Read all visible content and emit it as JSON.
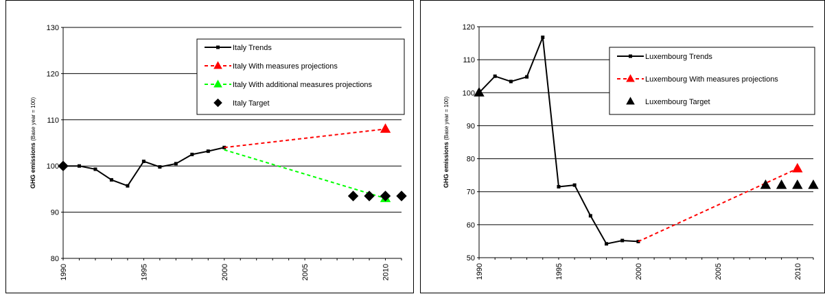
{
  "chart_data": [
    {
      "type": "line",
      "ylabel": "GHG emissions",
      "ylabel_note": "(Base year = 100)",
      "ylim": [
        80,
        130
      ],
      "yticks": [
        80,
        90,
        100,
        110,
        120,
        130
      ],
      "xlim": [
        1990,
        2011
      ],
      "xticks": [
        1990,
        1995,
        2000,
        2005,
        2010
      ],
      "grid": true,
      "legend_position": "top-right",
      "series": [
        {
          "name": "Italy  Trends",
          "color": "#000000",
          "style": "solid",
          "marker": "square",
          "points": [
            [
              1990,
              100
            ],
            [
              1991,
              100
            ],
            [
              1992,
              99.3
            ],
            [
              1993,
              97
            ],
            [
              1994,
              95.7
            ],
            [
              1995,
              101
            ],
            [
              1996,
              99.8
            ],
            [
              1997,
              100.5
            ],
            [
              1998,
              102.5
            ],
            [
              1999,
              103.2
            ],
            [
              2000,
              104
            ]
          ]
        },
        {
          "name": "Italy  With measures projections",
          "color": "#ff0000",
          "style": "dashed",
          "marker": "triangle",
          "points": [
            [
              2000,
              104
            ],
            [
              2010,
              108
            ]
          ]
        },
        {
          "name": "Italy  With additional measures projections",
          "color": "#00ff00",
          "style": "dashed",
          "marker": "triangle",
          "points": [
            [
              2000,
              103.5
            ],
            [
              2010,
              93
            ]
          ]
        },
        {
          "name": "Italy  Target",
          "color": "#000000",
          "style": "none",
          "marker": "diamond",
          "points": [
            [
              1990,
              100
            ],
            [
              2008,
              93.5
            ],
            [
              2009,
              93.5
            ],
            [
              2010,
              93.5
            ],
            [
              2011,
              93.5
            ]
          ]
        }
      ]
    },
    {
      "type": "line",
      "ylabel": "GHG emissions",
      "ylabel_note": "(Base year = 100)",
      "ylim": [
        50,
        120
      ],
      "yticks": [
        50,
        60,
        70,
        80,
        90,
        100,
        110,
        120
      ],
      "xlim": [
        1990,
        2011
      ],
      "xticks": [
        1990,
        1995,
        2000,
        2005,
        2010
      ],
      "grid": true,
      "legend_position": "top-right",
      "series": [
        {
          "name": "Luxembourg  Trends",
          "color": "#000000",
          "style": "solid",
          "marker": "square",
          "points": [
            [
              1990,
              100
            ],
            [
              1991,
              105
            ],
            [
              1992,
              103.4
            ],
            [
              1993,
              104.8
            ],
            [
              1994,
              116.8
            ],
            [
              1995,
              71.5
            ],
            [
              1996,
              72
            ],
            [
              1997,
              62.7
            ],
            [
              1998,
              54.2
            ],
            [
              1999,
              55.2
            ],
            [
              2000,
              54.9
            ]
          ]
        },
        {
          "name": "Luxembourg  With measures projections",
          "color": "#ff0000",
          "style": "dashed",
          "marker": "triangle",
          "points": [
            [
              2000,
              54.9
            ],
            [
              2010,
              77
            ]
          ]
        },
        {
          "name": "Luxembourg  Target",
          "color": "#000000",
          "style": "none",
          "marker": "triangle",
          "points": [
            [
              1990,
              100
            ],
            [
              2008,
              72
            ],
            [
              2009,
              72
            ],
            [
              2010,
              72
            ],
            [
              2011,
              72
            ]
          ]
        }
      ]
    }
  ]
}
